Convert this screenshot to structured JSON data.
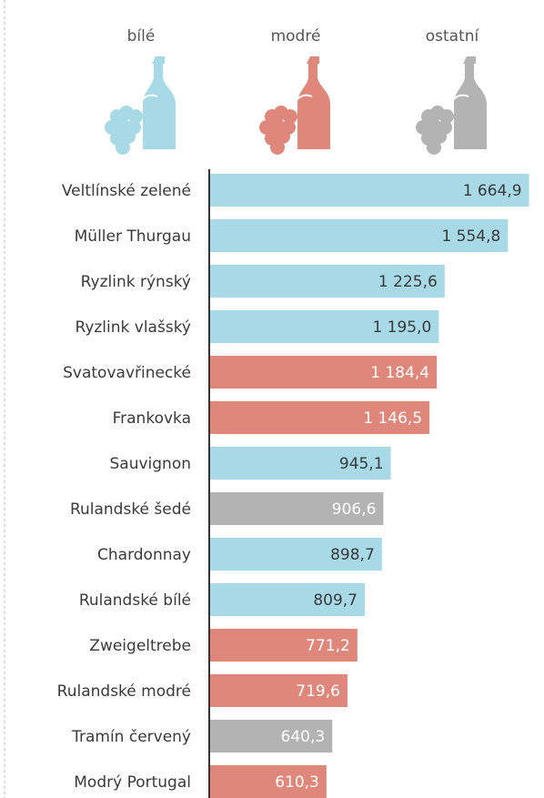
{
  "chart_data": {
    "type": "bar",
    "orientation": "horizontal",
    "categories": [
      "Veltlínské zelené",
      "Müller Thurgau",
      "Ryzlink rýnský",
      "Ryzlink vlašský",
      "Svatovavřinecké",
      "Frankovka",
      "Sauvignon",
      "Rulandské šedé",
      "Chardonnay",
      "Rulandské bílé",
      "Zweigeltrebe",
      "Rulandské modré",
      "Tramín červený",
      "Modrý Portugal"
    ],
    "series": [
      {
        "name": "bílé",
        "color": "#a7d9e6",
        "values": [
          1664.9,
          1554.8,
          1225.6,
          1195.0,
          null,
          null,
          945.1,
          null,
          898.7,
          809.7,
          null,
          null,
          null,
          null
        ],
        "value_labels": [
          "1 664,9",
          "1 554,8",
          "1 225,6",
          "1 195,0",
          null,
          null,
          "945,1",
          null,
          "898,7",
          "809,7",
          null,
          null,
          null,
          null
        ]
      },
      {
        "name": "modré",
        "color": "#e0877b",
        "values": [
          null,
          null,
          null,
          null,
          1184.4,
          1146.5,
          null,
          null,
          null,
          null,
          771.2,
          719.6,
          null,
          610.3
        ],
        "value_labels": [
          null,
          null,
          null,
          null,
          "1 184,4",
          "1 146,5",
          null,
          null,
          null,
          null,
          "771,2",
          "719,6",
          null,
          "610,3"
        ]
      },
      {
        "name": "ostatní",
        "color": "#b3b3b3",
        "values": [
          null,
          null,
          null,
          null,
          null,
          null,
          null,
          906.6,
          null,
          null,
          null,
          null,
          640.3,
          null
        ],
        "value_labels": [
          null,
          null,
          null,
          null,
          null,
          null,
          null,
          "906,6",
          null,
          null,
          null,
          null,
          "640,3",
          null
        ]
      }
    ],
    "xlim": [
      0,
      1700
    ]
  }
}
